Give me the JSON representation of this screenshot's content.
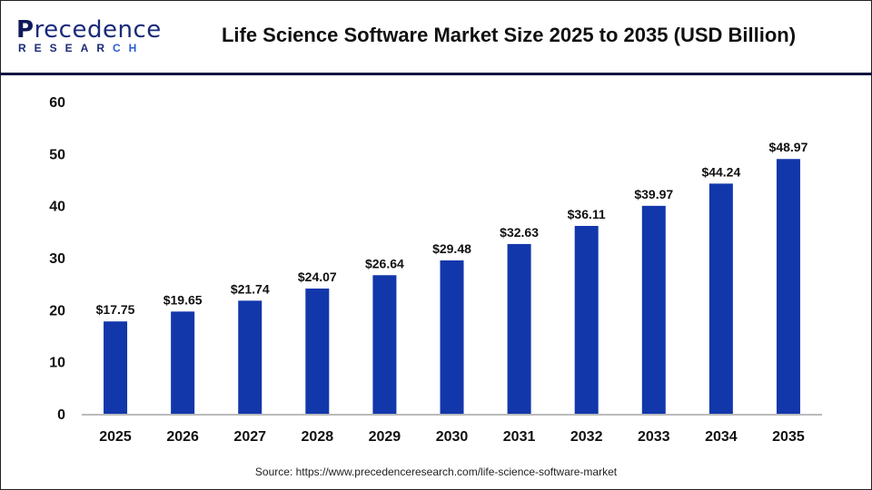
{
  "logo": {
    "text": "Precedence RESEARCH"
  },
  "header": {
    "title": "Life Science Software Market Size 2025 to 2035 (USD Billion)"
  },
  "footer": {
    "source": "Source: https://www.precedenceresearch.com/life-science-software-market"
  },
  "colors": {
    "bar": "#1237ab",
    "axis": "#bbbbbb",
    "header_rule": "#0d1340"
  },
  "chart_data": {
    "type": "bar",
    "title": "Life Science Software Market Size 2025 to 2035 (USD Billion)",
    "categories": [
      "2025",
      "2026",
      "2027",
      "2028",
      "2029",
      "2030",
      "2031",
      "2032",
      "2033",
      "2034",
      "2035"
    ],
    "values": [
      17.75,
      19.65,
      21.74,
      24.07,
      26.64,
      29.48,
      32.63,
      36.11,
      39.97,
      44.24,
      48.97
    ],
    "data_labels": [
      "$17.75",
      "$19.65",
      "$21.74",
      "$24.07",
      "$26.64",
      "$29.48",
      "$32.63",
      "$36.11",
      "$39.97",
      "$44.24",
      "$48.97"
    ],
    "ylim": [
      0,
      60
    ],
    "yticks": [
      0,
      10,
      20,
      30,
      40,
      50,
      60
    ],
    "xlabel": "",
    "ylabel": "",
    "grid": false,
    "legend": "none"
  }
}
